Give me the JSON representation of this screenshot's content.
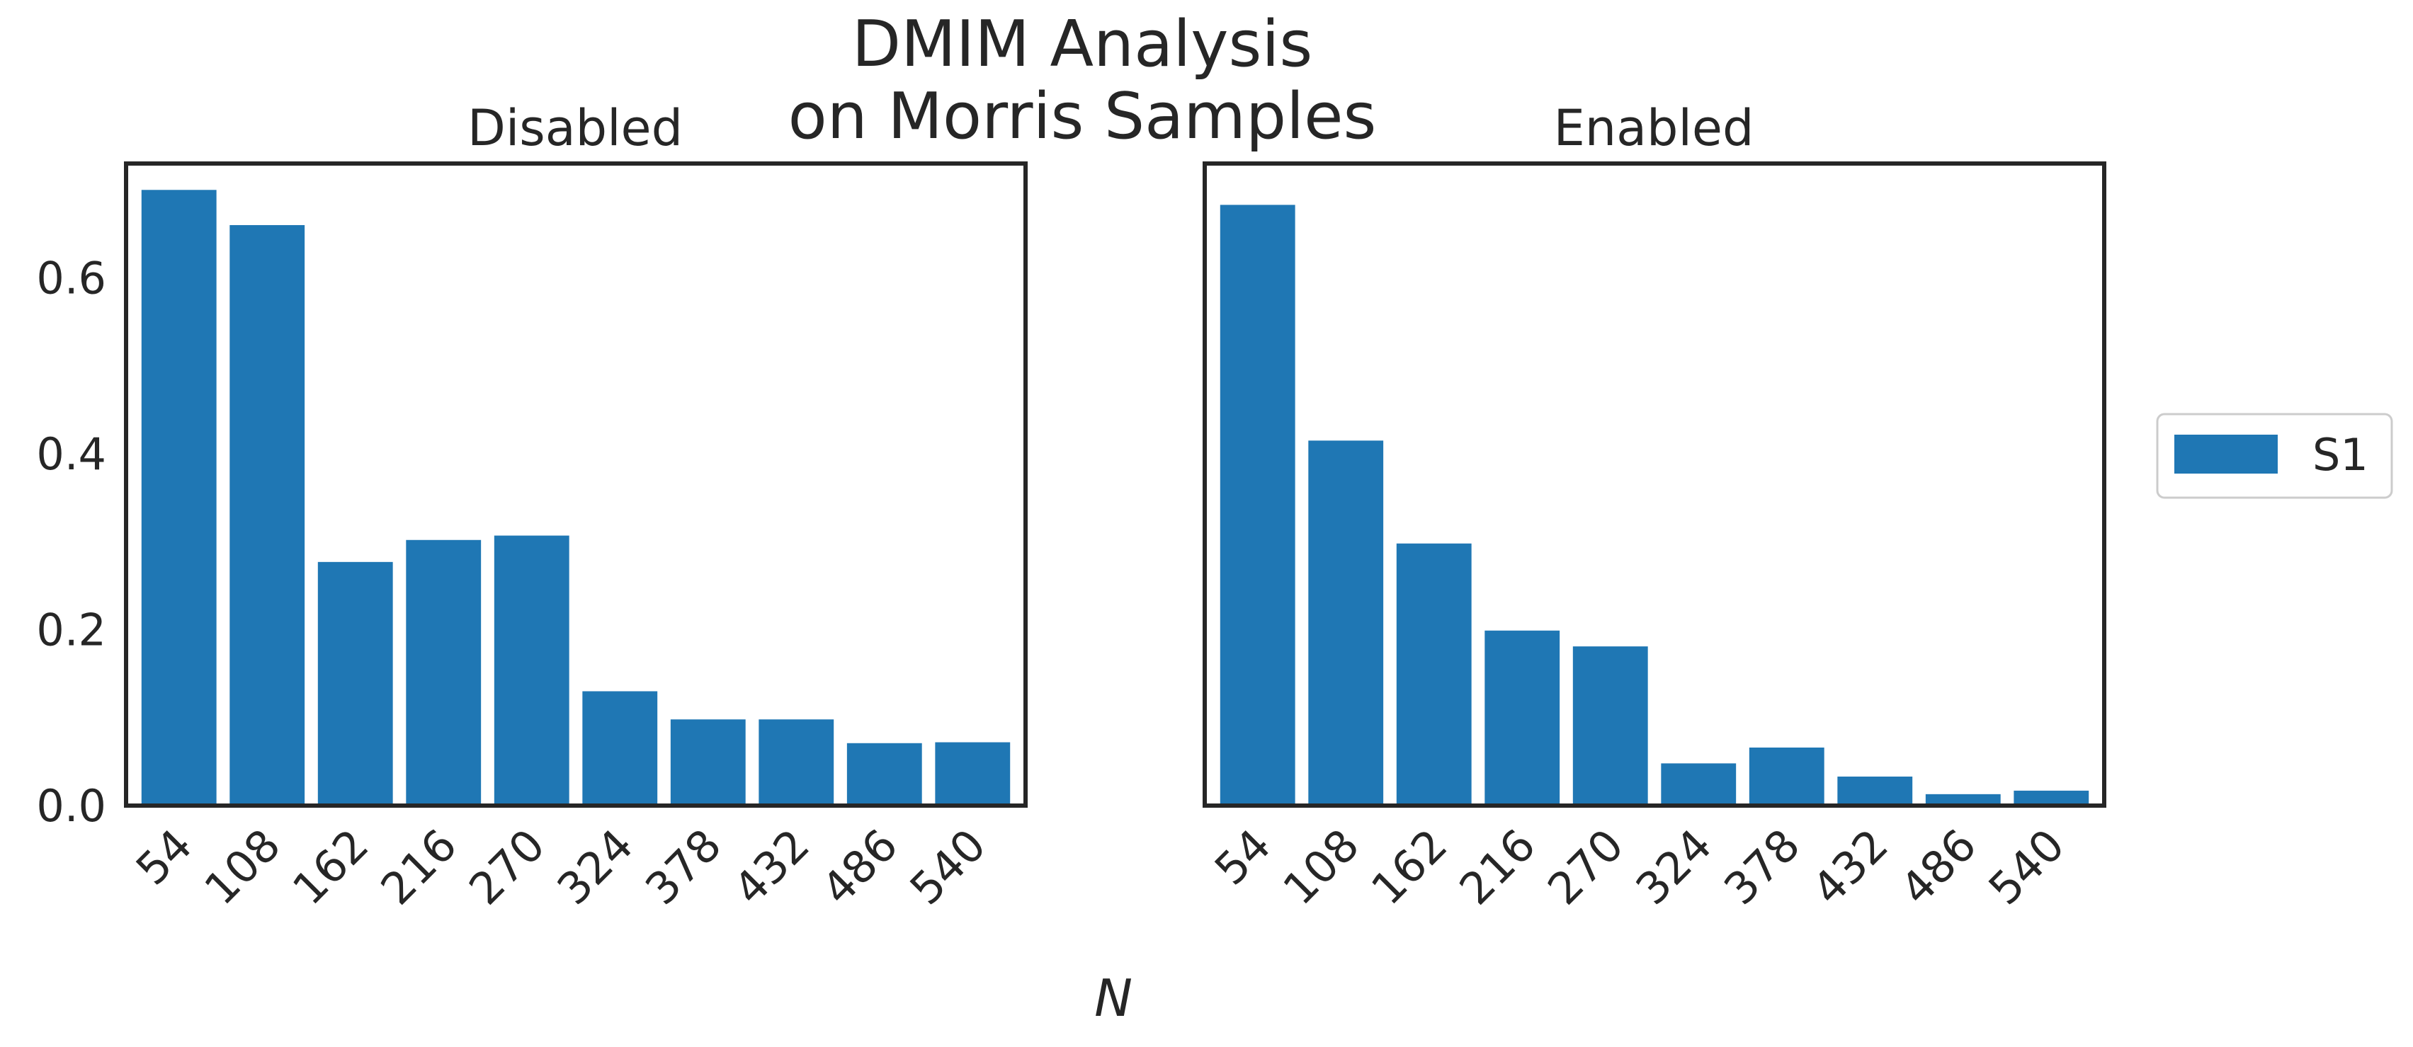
{
  "chart_data": [
    {
      "type": "bar",
      "title": "Disabled",
      "categories": [
        "54",
        "108",
        "162",
        "216",
        "270",
        "324",
        "378",
        "432",
        "486",
        "540"
      ],
      "series": [
        {
          "name": "S1",
          "values": [
            0.7,
            0.66,
            0.277,
            0.302,
            0.307,
            0.13,
            0.098,
            0.098,
            0.071,
            0.072
          ]
        }
      ],
      "xlabel": "",
      "ylabel": "",
      "ylim": [
        0,
        0.73
      ],
      "yticks": [
        "0.0",
        "0.2",
        "0.4",
        "0.6"
      ],
      "grid": false
    },
    {
      "type": "bar",
      "title": "Enabled",
      "categories": [
        "54",
        "108",
        "162",
        "216",
        "270",
        "324",
        "378",
        "432",
        "486",
        "540"
      ],
      "series": [
        {
          "name": "S1",
          "values": [
            0.683,
            0.415,
            0.298,
            0.199,
            0.181,
            0.048,
            0.066,
            0.033,
            0.013,
            0.017
          ]
        }
      ],
      "xlabel": "",
      "ylabel": "",
      "ylim": [
        0,
        0.73
      ],
      "grid": false
    }
  ],
  "figure": {
    "title_line1": "DMIM Analysis",
    "title_line2": "on Morris Samples",
    "xlabel": "N",
    "legend_label": "S1",
    "legend_position": "right",
    "bar_color": "#1f77b4",
    "axis_color": "#262626"
  }
}
